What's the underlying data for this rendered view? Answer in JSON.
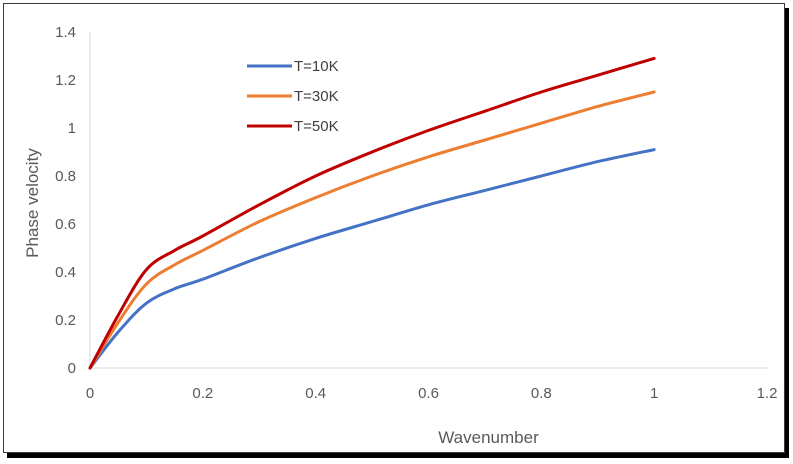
{
  "chart_data": {
    "type": "line",
    "xlabel": "Wavenumber",
    "ylabel": "Phase velocity",
    "xlim": [
      0,
      1.2
    ],
    "ylim": [
      0,
      1.4
    ],
    "xticks": [
      "0",
      "0.2",
      "0.4",
      "0.6",
      "0.8",
      "1",
      "1.2"
    ],
    "yticks": [
      "0",
      "0.2",
      "0.4",
      "0.6",
      "0.8",
      "1",
      "1.2",
      "1.4"
    ],
    "grid": false,
    "legend_position": "top-left",
    "x": [
      0,
      0.05,
      0.1,
      0.15,
      0.2,
      0.3,
      0.4,
      0.5,
      0.6,
      0.7,
      0.8,
      0.9,
      1.0
    ],
    "series": [
      {
        "name": "T=10K",
        "color": "#4472C4",
        "values": [
          0,
          0.15,
          0.27,
          0.33,
          0.37,
          0.46,
          0.54,
          0.61,
          0.68,
          0.74,
          0.8,
          0.86,
          0.91
        ]
      },
      {
        "name": "T=30K",
        "color": "#ED7D31",
        "values": [
          0,
          0.19,
          0.35,
          0.43,
          0.49,
          0.61,
          0.71,
          0.8,
          0.88,
          0.95,
          1.02,
          1.09,
          1.15
        ]
      },
      {
        "name": "T=50K",
        "color": "#C00000",
        "values": [
          0,
          0.22,
          0.41,
          0.49,
          0.55,
          0.68,
          0.8,
          0.9,
          0.99,
          1.07,
          1.15,
          1.22,
          1.29
        ]
      }
    ]
  }
}
